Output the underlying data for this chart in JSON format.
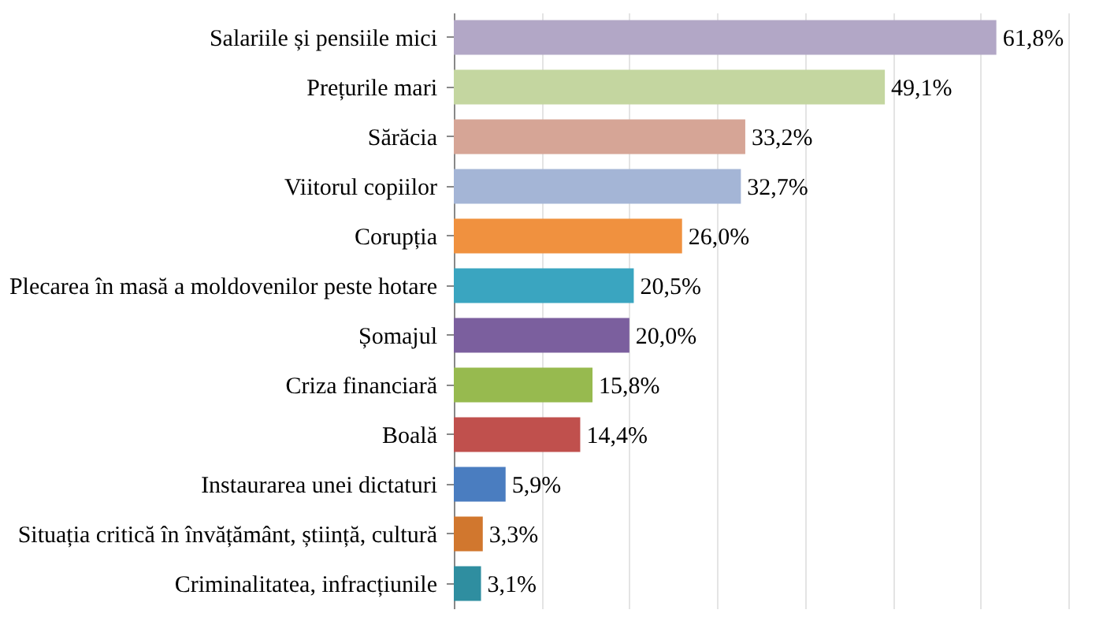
{
  "chart_data": {
    "type": "bar",
    "orientation": "horizontal",
    "categories": [
      "Salariile și pensiile mici",
      "Prețurile mari",
      "Sărăcia",
      "Viitorul copiilor",
      "Corupția",
      "Plecarea în masă a moldovenilor peste hotare",
      "Șomajul",
      "Criza financiară",
      "Boală",
      "Instaurarea unei dictaturi",
      "Situația critică în învățământ, știință, cultură",
      "Criminalitatea, infracțiunile"
    ],
    "values": [
      61.8,
      49.1,
      33.2,
      32.7,
      26.0,
      20.5,
      20.0,
      15.8,
      14.4,
      5.9,
      3.3,
      3.1
    ],
    "colors": [
      "#b2a7c6",
      "#c4d6a0",
      "#d6a596",
      "#a4b5d6",
      "#f0913f",
      "#3aa5c0",
      "#7b5f9e",
      "#97ba4f",
      "#c0504d",
      "#4a7dc0",
      "#d1772e",
      "#2f8ea0"
    ],
    "value_labels": [
      "61,8%",
      "49,1%",
      "33,2%",
      "32,7%",
      "26,0%",
      "20,5%",
      "20,0%",
      "15,8%",
      "14,4%",
      "5,9%",
      "3,3%",
      "3,1%"
    ],
    "xlim": [
      0,
      70
    ],
    "xticks": [
      {
        "value": 0,
        "label": null
      },
      {
        "value": 10,
        "label": null
      },
      {
        "value": 20,
        "label": null
      },
      {
        "value": 30,
        "label": null
      },
      {
        "value": 40,
        "label": null
      },
      {
        "value": 50,
        "label": null
      },
      {
        "value": 60,
        "label": null
      },
      {
        "value": 70,
        "label": null
      }
    ],
    "grid": "x",
    "tick_labels": "y"
  }
}
